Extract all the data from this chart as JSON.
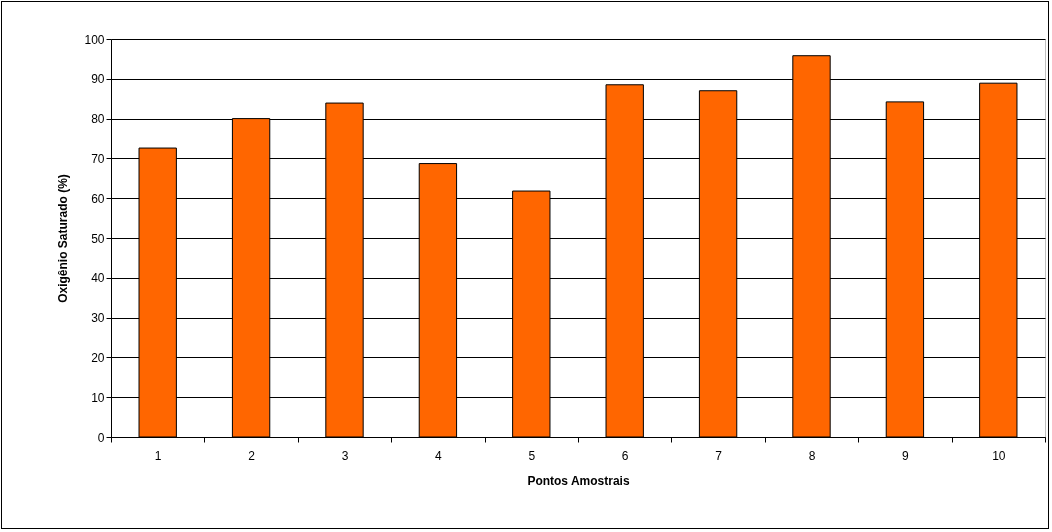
{
  "chart_data": {
    "type": "bar",
    "xlabel": "Pontos Amostrais",
    "ylabel": "Oxigênio Saturado (%)",
    "categories": [
      "1",
      "2",
      "3",
      "4",
      "5",
      "6",
      "7",
      "8",
      "9",
      "10"
    ],
    "values": [
      72.6,
      80.0,
      83.9,
      68.7,
      61.8,
      88.5,
      87.0,
      95.8,
      84.2,
      88.9
    ],
    "color": "#ff6600",
    "ylim": [
      0,
      100
    ],
    "yticks": [
      0,
      10,
      20,
      30,
      40,
      50,
      60,
      70,
      80,
      90,
      100
    ],
    "grid": true
  }
}
